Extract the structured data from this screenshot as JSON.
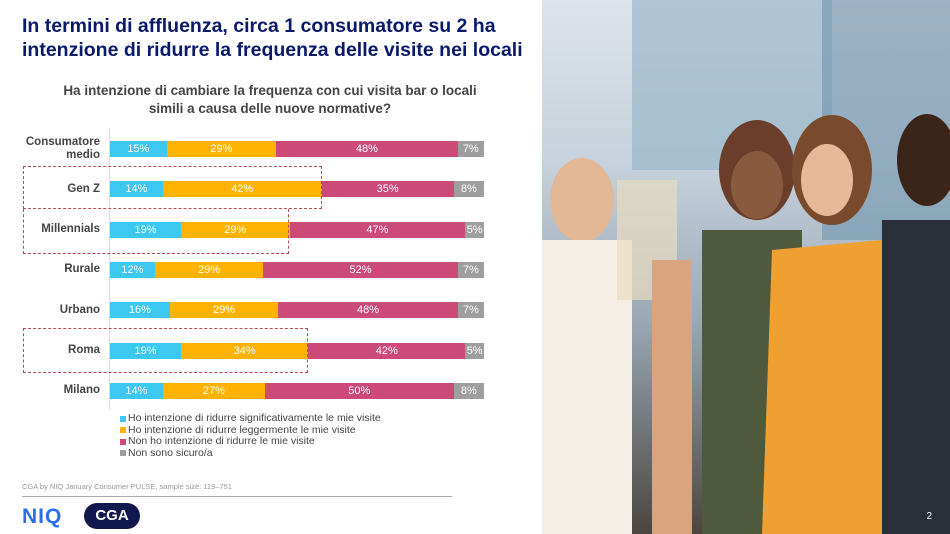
{
  "title": "In termini di affluenza, circa 1 consumatore su 2 ha intenzione di ridurre la frequenza delle visite nei locali",
  "page_number": "2",
  "source": "CGA by NIQ January Consumer PULSE, sample size: 119–751",
  "logos": {
    "niq": "NIQ",
    "cga": "CGA"
  },
  "colors": {
    "sig": "#3cc8f0",
    "slight": "#ffb300",
    "no": "#cc4a78",
    "unsure": "#9e9e9e",
    "title": "#0a1a6b"
  },
  "chart_data": {
    "type": "bar",
    "stacked": true,
    "orientation": "horizontal",
    "title": "Ha intenzione di cambiare la frequenza con cui visita bar o locali simili a causa delle nuove normative?",
    "categories": [
      "Consumatore medio",
      "Gen Z",
      "Millennials",
      "Rurale",
      "Urbano",
      "Roma",
      "Milano"
    ],
    "highlighted": [
      "Gen Z",
      "Millennials",
      "Roma"
    ],
    "series": [
      {
        "name": "Ho intenzione di ridurre significativamente le mie visite",
        "values": [
          15,
          14,
          19,
          12,
          16,
          19,
          14
        ]
      },
      {
        "name": "Ho intenzione di ridurre leggermente le mie visite",
        "values": [
          29,
          42,
          29,
          29,
          29,
          34,
          27
        ]
      },
      {
        "name": "Non ho intenzione di ridurre le mie visite",
        "values": [
          48,
          35,
          47,
          52,
          48,
          42,
          50
        ]
      },
      {
        "name": "Non sono sicuro/a",
        "values": [
          7,
          8,
          5,
          7,
          7,
          5,
          8
        ]
      }
    ],
    "value_format": "{v}%",
    "legend_position": "bottom"
  }
}
